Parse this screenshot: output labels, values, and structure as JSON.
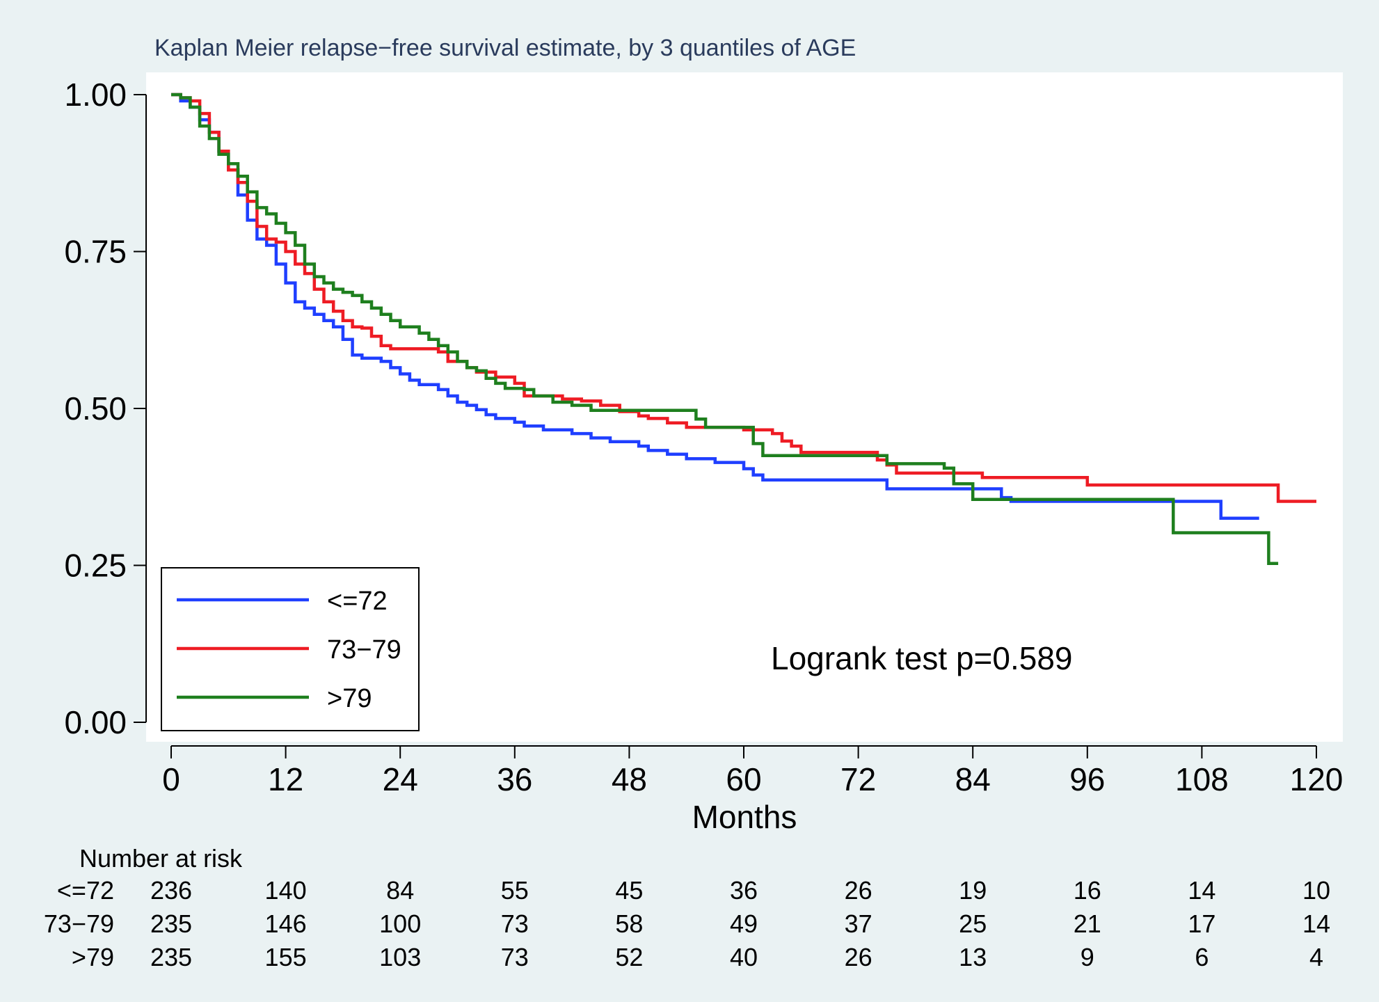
{
  "chart_data": {
    "type": "line",
    "step": true,
    "title": "Kaplan Meier relapse−free survival estimate, by 3 quantiles of AGE",
    "xlabel": "Months",
    "ylabel": "",
    "xlim": [
      0,
      120
    ],
    "ylim": [
      0,
      1
    ],
    "x_ticks": [
      "0",
      "12",
      "24",
      "36",
      "48",
      "60",
      "72",
      "84",
      "96",
      "108",
      "120"
    ],
    "y_ticks": [
      "0.00",
      "0.25",
      "0.50",
      "0.75",
      "1.00"
    ],
    "grid": false,
    "legend_position": "bottom-left",
    "annotation": "Logrank test p=0.589",
    "colors": {
      "le72": "#1f3fff",
      "73_79": "#ee1c24",
      "gt79": "#1e7f1e",
      "background": "#eaf2f3",
      "plot_bg": "#ffffff"
    },
    "series": [
      {
        "name": "<=72",
        "color_key": "le72",
        "points": [
          [
            0,
            1.0
          ],
          [
            1,
            0.99
          ],
          [
            2,
            0.98
          ],
          [
            3,
            0.96
          ],
          [
            4,
            0.94
          ],
          [
            5,
            0.91
          ],
          [
            6,
            0.88
          ],
          [
            7,
            0.84
          ],
          [
            8,
            0.8
          ],
          [
            9,
            0.77
          ],
          [
            10,
            0.76
          ],
          [
            11,
            0.73
          ],
          [
            12,
            0.7
          ],
          [
            13,
            0.67
          ],
          [
            14,
            0.66
          ],
          [
            15,
            0.65
          ],
          [
            16,
            0.64
          ],
          [
            17,
            0.63
          ],
          [
            18,
            0.61
          ],
          [
            19,
            0.585
          ],
          [
            20,
            0.58
          ],
          [
            22,
            0.575
          ],
          [
            23,
            0.565
          ],
          [
            24,
            0.555
          ],
          [
            25,
            0.545
          ],
          [
            26,
            0.538
          ],
          [
            28,
            0.53
          ],
          [
            29,
            0.52
          ],
          [
            30,
            0.51
          ],
          [
            31,
            0.505
          ],
          [
            32,
            0.498
          ],
          [
            33,
            0.49
          ],
          [
            34,
            0.484
          ],
          [
            36,
            0.478
          ],
          [
            37,
            0.472
          ],
          [
            39,
            0.466
          ],
          [
            42,
            0.46
          ],
          [
            44,
            0.453
          ],
          [
            46,
            0.447
          ],
          [
            48,
            0.447
          ],
          [
            49,
            0.44
          ],
          [
            50,
            0.433
          ],
          [
            52,
            0.427
          ],
          [
            54,
            0.42
          ],
          [
            57,
            0.414
          ],
          [
            60,
            0.404
          ],
          [
            61,
            0.394
          ],
          [
            62,
            0.386
          ],
          [
            68,
            0.386
          ],
          [
            72,
            0.386
          ],
          [
            75,
            0.372
          ],
          [
            80,
            0.372
          ],
          [
            87,
            0.358
          ],
          [
            88,
            0.352
          ],
          [
            96,
            0.352
          ],
          [
            104,
            0.352
          ],
          [
            109,
            0.352
          ],
          [
            110,
            0.325
          ],
          [
            114,
            0.325
          ]
        ]
      },
      {
        "name": "73−79",
        "color_key": "73_79",
        "points": [
          [
            0,
            1.0
          ],
          [
            1,
            0.995
          ],
          [
            2,
            0.99
          ],
          [
            3,
            0.97
          ],
          [
            4,
            0.94
          ],
          [
            5,
            0.91
          ],
          [
            6,
            0.88
          ],
          [
            7,
            0.86
          ],
          [
            8,
            0.83
          ],
          [
            9,
            0.79
          ],
          [
            10,
            0.77
          ],
          [
            11,
            0.765
          ],
          [
            12,
            0.75
          ],
          [
            13,
            0.73
          ],
          [
            14,
            0.715
          ],
          [
            15,
            0.69
          ],
          [
            16,
            0.67
          ],
          [
            17,
            0.655
          ],
          [
            18,
            0.64
          ],
          [
            19,
            0.63
          ],
          [
            20,
            0.628
          ],
          [
            21,
            0.615
          ],
          [
            22,
            0.6
          ],
          [
            23,
            0.595
          ],
          [
            24,
            0.595
          ],
          [
            28,
            0.59
          ],
          [
            29,
            0.575
          ],
          [
            31,
            0.565
          ],
          [
            32,
            0.558
          ],
          [
            34,
            0.55
          ],
          [
            36,
            0.54
          ],
          [
            37,
            0.52
          ],
          [
            39,
            0.52
          ],
          [
            41,
            0.515
          ],
          [
            43,
            0.512
          ],
          [
            45,
            0.505
          ],
          [
            47,
            0.495
          ],
          [
            49,
            0.488
          ],
          [
            50,
            0.484
          ],
          [
            52,
            0.477
          ],
          [
            54,
            0.47
          ],
          [
            58,
            0.47
          ],
          [
            60,
            0.466
          ],
          [
            63,
            0.46
          ],
          [
            64,
            0.448
          ],
          [
            65,
            0.44
          ],
          [
            66,
            0.43
          ],
          [
            68,
            0.43
          ],
          [
            73,
            0.43
          ],
          [
            74,
            0.418
          ],
          [
            75,
            0.41
          ],
          [
            76,
            0.397
          ],
          [
            82,
            0.397
          ],
          [
            85,
            0.39
          ],
          [
            89,
            0.39
          ],
          [
            95,
            0.39
          ],
          [
            96,
            0.378
          ],
          [
            100,
            0.378
          ],
          [
            115,
            0.378
          ],
          [
            116,
            0.352
          ],
          [
            120,
            0.352
          ]
        ]
      },
      {
        "name": ">79",
        "color_key": "gt79",
        "points": [
          [
            0,
            1.0
          ],
          [
            1,
            0.995
          ],
          [
            2,
            0.98
          ],
          [
            3,
            0.95
          ],
          [
            4,
            0.93
          ],
          [
            5,
            0.905
          ],
          [
            6,
            0.89
          ],
          [
            7,
            0.87
          ],
          [
            8,
            0.845
          ],
          [
            9,
            0.82
          ],
          [
            10,
            0.81
          ],
          [
            11,
            0.795
          ],
          [
            12,
            0.78
          ],
          [
            13,
            0.76
          ],
          [
            14,
            0.73
          ],
          [
            15,
            0.71
          ],
          [
            16,
            0.7
          ],
          [
            17,
            0.69
          ],
          [
            18,
            0.685
          ],
          [
            19,
            0.68
          ],
          [
            20,
            0.67
          ],
          [
            21,
            0.66
          ],
          [
            22,
            0.65
          ],
          [
            23,
            0.64
          ],
          [
            24,
            0.63
          ],
          [
            26,
            0.62
          ],
          [
            27,
            0.61
          ],
          [
            28,
            0.6
          ],
          [
            29,
            0.59
          ],
          [
            30,
            0.575
          ],
          [
            31,
            0.565
          ],
          [
            32,
            0.56
          ],
          [
            33,
            0.548
          ],
          [
            34,
            0.54
          ],
          [
            35,
            0.532
          ],
          [
            37,
            0.53
          ],
          [
            38,
            0.52
          ],
          [
            40,
            0.51
          ],
          [
            42,
            0.505
          ],
          [
            44,
            0.497
          ],
          [
            48,
            0.497
          ],
          [
            50,
            0.497
          ],
          [
            54,
            0.497
          ],
          [
            55,
            0.483
          ],
          [
            56,
            0.47
          ],
          [
            60,
            0.47
          ],
          [
            61,
            0.444
          ],
          [
            62,
            0.425
          ],
          [
            70,
            0.425
          ],
          [
            74,
            0.425
          ],
          [
            75,
            0.412
          ],
          [
            81,
            0.405
          ],
          [
            82,
            0.38
          ],
          [
            84,
            0.355
          ],
          [
            90,
            0.355
          ],
          [
            96,
            0.355
          ],
          [
            104,
            0.355
          ],
          [
            105,
            0.302
          ],
          [
            114,
            0.302
          ],
          [
            115,
            0.253
          ],
          [
            116,
            0.253
          ]
        ]
      }
    ],
    "risk_table": {
      "label": "Number at risk",
      "rows": [
        {
          "name": "<=72",
          "values": [
            "236",
            "140",
            "84",
            "55",
            "45",
            "36",
            "26",
            "19",
            "16",
            "14",
            "10"
          ]
        },
        {
          "name": "73−79",
          "values": [
            "235",
            "146",
            "100",
            "73",
            "58",
            "49",
            "37",
            "25",
            "21",
            "17",
            "14"
          ]
        },
        {
          "name": ">79",
          "values": [
            "235",
            "155",
            "103",
            "73",
            "52",
            "40",
            "26",
            "13",
            "9",
            "6",
            "4"
          ]
        }
      ]
    }
  }
}
